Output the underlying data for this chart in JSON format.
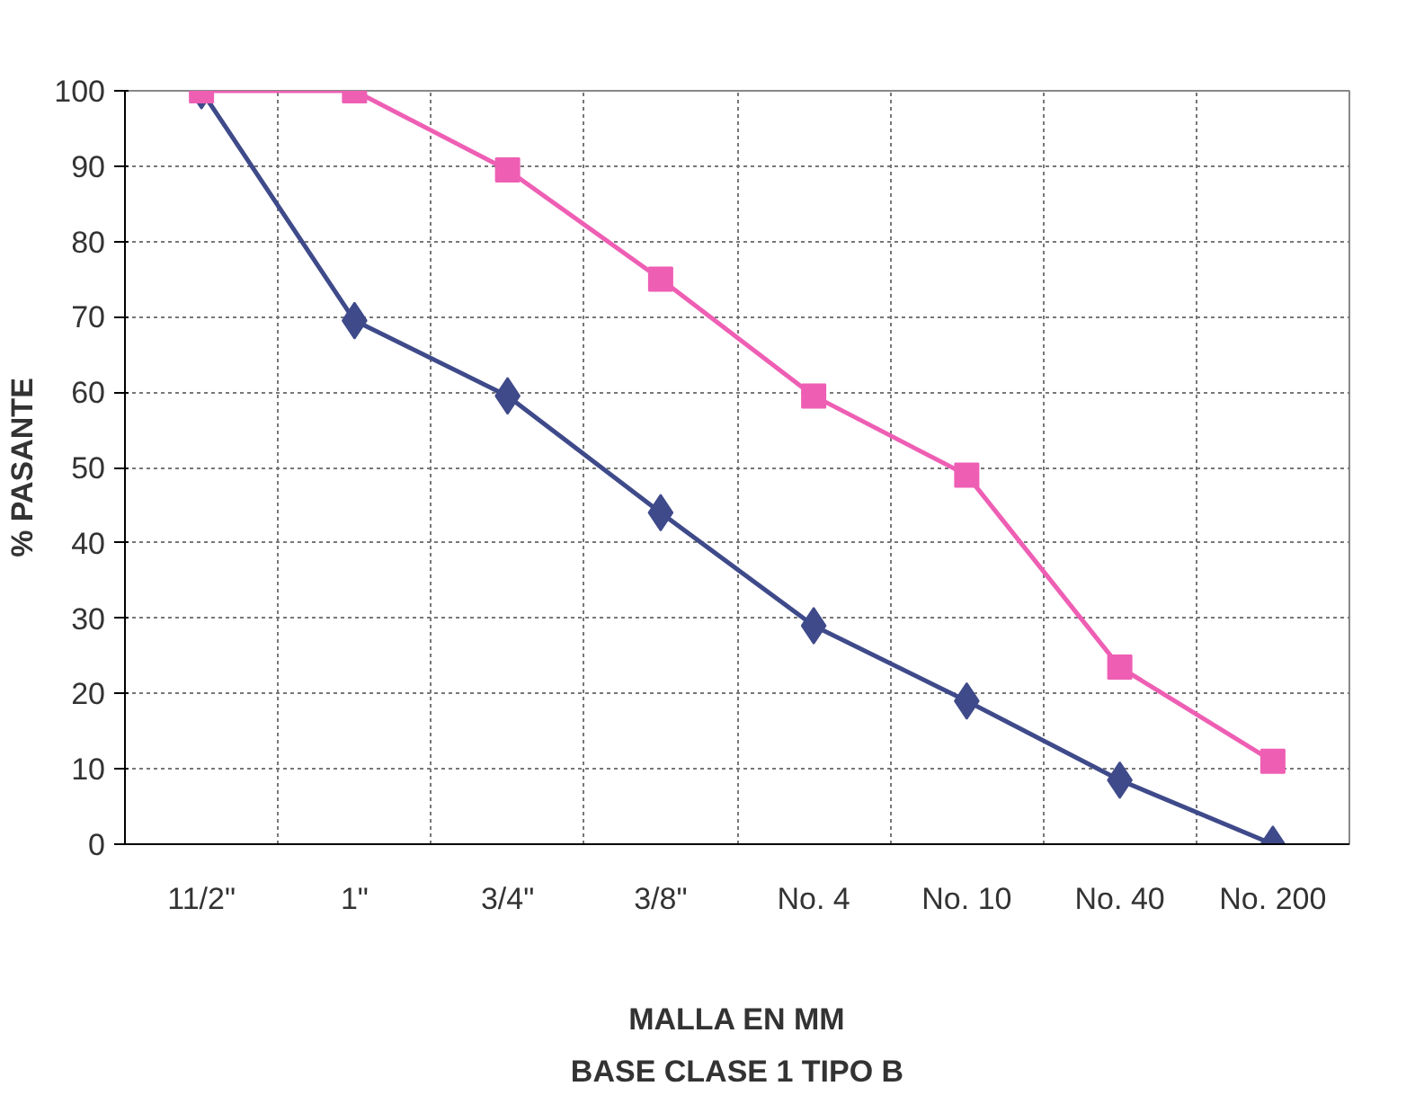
{
  "chart_data": {
    "type": "line",
    "xlabel": "MALLA EN MM",
    "ylabel": "% PASANTE",
    "annotations": [
      "BASE CLASE 1 TIPO B"
    ],
    "categories": [
      "11/2\"",
      "1\"",
      "3/4\"",
      "3/8\"",
      "No. 4",
      "No. 10",
      "No. 40",
      "No. 200"
    ],
    "series": [
      {
        "color": "#3f4a8a",
        "marker": "diamond",
        "values": [
          100,
          69.5,
          59.5,
          44,
          29,
          19,
          8.5,
          0
        ]
      },
      {
        "color": "#ee5fb4",
        "marker": "square",
        "values": [
          100,
          100,
          89.5,
          75,
          59.5,
          49,
          23.5,
          11
        ]
      }
    ],
    "ylim": [
      0,
      100
    ],
    "yticks": [
      0,
      10,
      20,
      30,
      40,
      50,
      60,
      70,
      80,
      90,
      100
    ],
    "grid": true
  }
}
